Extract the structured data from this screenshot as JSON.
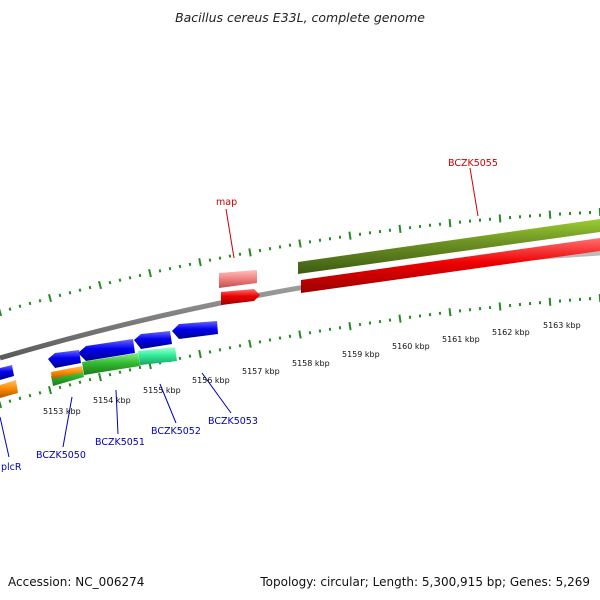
{
  "title": "Bacillus cereus E33L, complete genome",
  "footer": {
    "accession": "Accession: NC_006274",
    "stats": "Topology: circular; Length: 5,300,915 bp; Genes: 5,269"
  },
  "scale_labels": [
    "5153 kbp",
    "5154 kbp",
    "5155 kbp",
    "5156 kbp",
    "5157 kbp",
    "5158 kbp",
    "5159 kbp",
    "5160 kbp",
    "5161 kbp",
    "5162 kbp",
    "5163 kbp"
  ],
  "gene_labels": {
    "map": "map",
    "bczk5055": "BCZK5055",
    "bczk5050": "BCZK5050",
    "bczk5051": "BCZK5051",
    "bczk5052": "BCZK5052",
    "bczk5053": "BCZK5053",
    "plcr": "plcR"
  },
  "colors": {
    "backbone": "#8a8a8a",
    "forward_cds": "#ee0000",
    "forward_gene": "#6b8e23",
    "forward_pseudo": "#f08080",
    "reverse_cds": "#0000ee",
    "reverse_gene_green": "#33bb33",
    "reverse_gene_aqua": "#33ee99",
    "reverse_orange": "#ff8c00",
    "ticks": "#228b22",
    "label_fwd": "#cc0000",
    "label_rev": "#0000bb"
  }
}
